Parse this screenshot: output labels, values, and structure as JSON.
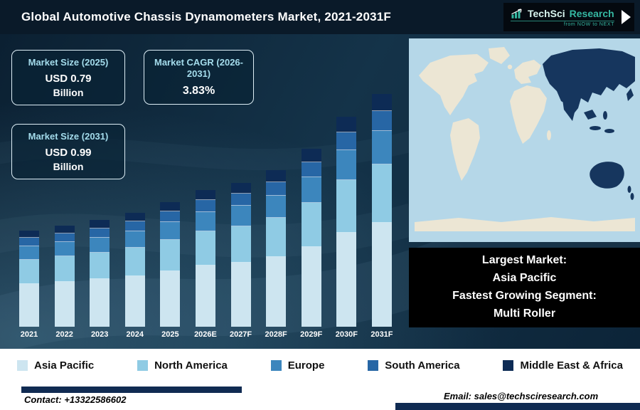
{
  "header": {
    "title": "Global Automotive Chassis Dynamometers Market, 2021-2031F",
    "logo": {
      "brand_primary": "TechSci",
      "brand_secondary": "Research",
      "tagline": "from NOW to NEXT"
    }
  },
  "info_boxes": {
    "market_size_2025": {
      "title": "Market Size (2025)",
      "value": "USD 0.79",
      "unit": "Billion"
    },
    "market_cagr": {
      "title": "Market CAGR (2026-2031)",
      "value": "3.83%"
    },
    "market_size_2031": {
      "title": "Market Size (2031)",
      "value": "USD 0.99",
      "unit": "Billion"
    }
  },
  "chart_data": {
    "type": "bar",
    "stacked": true,
    "title": "Global Automotive Chassis Dynamometers Market, 2021-2031F",
    "units": "relative segment height (no numeric axis shown)",
    "y_axis_visible": false,
    "legend_position": "bottom",
    "categories": [
      "2021",
      "2022",
      "2023",
      "2024",
      "2025",
      "2026E",
      "2027F",
      "2028F",
      "2029F",
      "2030F",
      "2031F"
    ],
    "series": [
      {
        "name": "Asia Pacific",
        "color": "#cde5f0",
        "values": [
          60,
          63,
          67,
          71,
          78,
          86,
          90,
          98,
          112,
          132,
          146
        ]
      },
      {
        "name": "North America",
        "color": "#8fcbe4",
        "values": [
          34,
          36,
          37,
          40,
          44,
          48,
          51,
          55,
          62,
          74,
          82
        ]
      },
      {
        "name": "Europe",
        "color": "#3c86bd",
        "values": [
          19,
          20,
          21,
          23,
          25,
          27,
          29,
          31,
          36,
          42,
          47
        ]
      },
      {
        "name": "South America",
        "color": "#2766a5",
        "values": [
          12,
          12,
          13,
          14,
          15,
          17,
          17,
          19,
          21,
          25,
          28
        ]
      },
      {
        "name": "Middle East & Africa",
        "color": "#0d2b55",
        "values": [
          10,
          11,
          12,
          12,
          13,
          14,
          15,
          17,
          19,
          22,
          24
        ]
      }
    ],
    "totals_labeled": {
      "2025": "USD 0.79 Billion",
      "2031": "USD 0.99 Billion"
    },
    "cagr_2026_2031": "3.83%"
  },
  "map": {
    "highlight_region": "Asia Pacific",
    "ocean_color": "#b5d7e8",
    "land_color": "#ece6d4",
    "highlight_color": "#16365e"
  },
  "callout": {
    "lines": [
      "Largest Market:",
      "Asia Pacific",
      "Fastest Growing Segment:",
      "Multi Roller"
    ]
  },
  "footer": {
    "contact": "Contact: +13322586602",
    "email": "Email: sales@techsciresearch.com"
  },
  "colors": {
    "header_bg": "#0a1a29",
    "canvas_bg": "#0f2a3f",
    "accent_teal": "#35b8a2",
    "footer_bar": "#102b52"
  }
}
